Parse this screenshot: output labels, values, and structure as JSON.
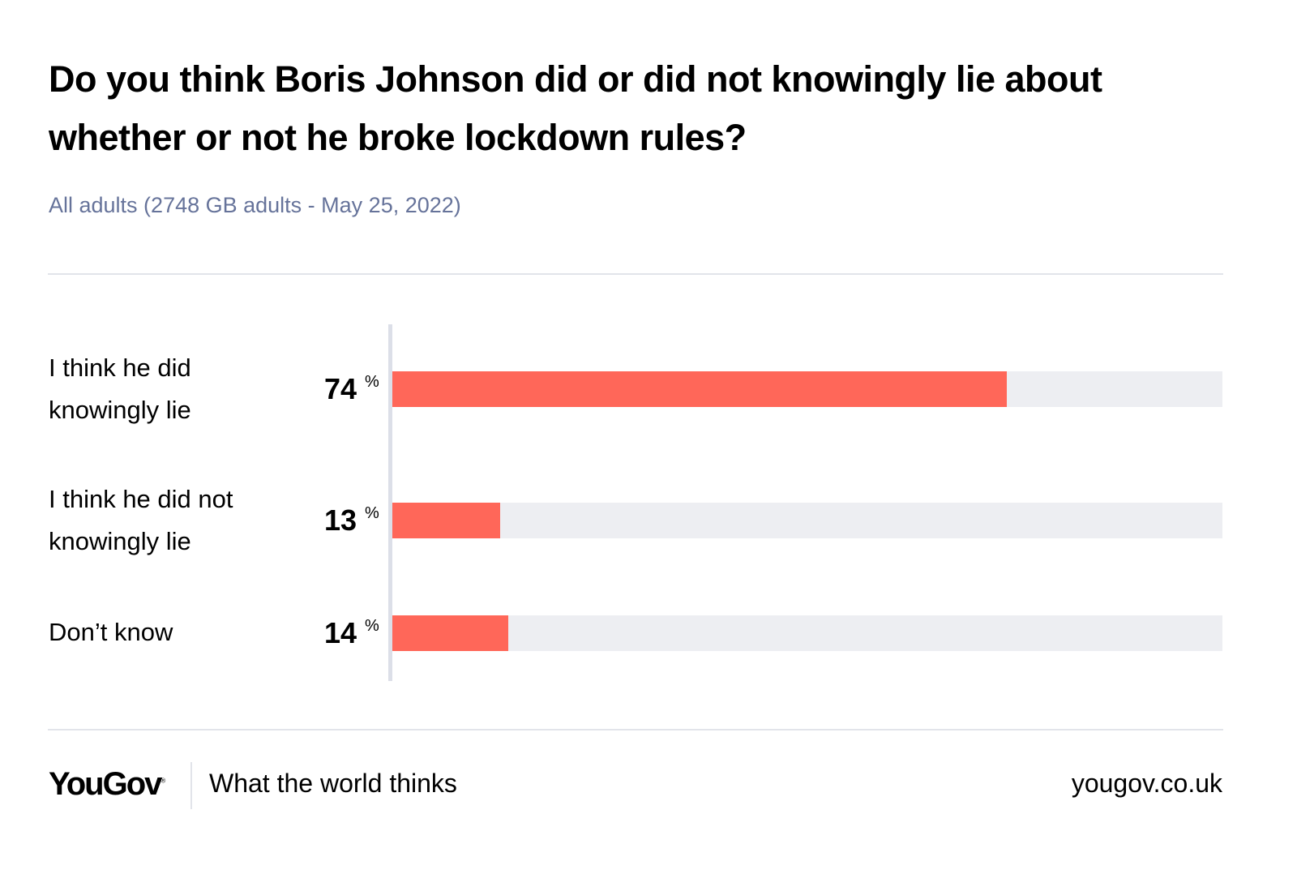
{
  "chart_data": {
    "type": "bar",
    "orientation": "horizontal",
    "title": "Do you think Boris Johnson did or did not knowingly lie about whether or not he broke lockdown rules?",
    "subtitle": "All adults (2748 GB adults - May 25, 2022)",
    "categories": [
      "I think he did knowingly lie",
      "I think he did not knowingly lie",
      "Don’t know"
    ],
    "values": [
      74,
      13,
      14
    ],
    "unit": "%",
    "xlim": [
      0,
      100
    ],
    "grid": false,
    "colors": {
      "bar": "#ff6759",
      "track": "#edeef2"
    }
  },
  "footer": {
    "logo": "YouGov",
    "tagline": "What the world thinks",
    "site": "yougov.co.uk"
  }
}
